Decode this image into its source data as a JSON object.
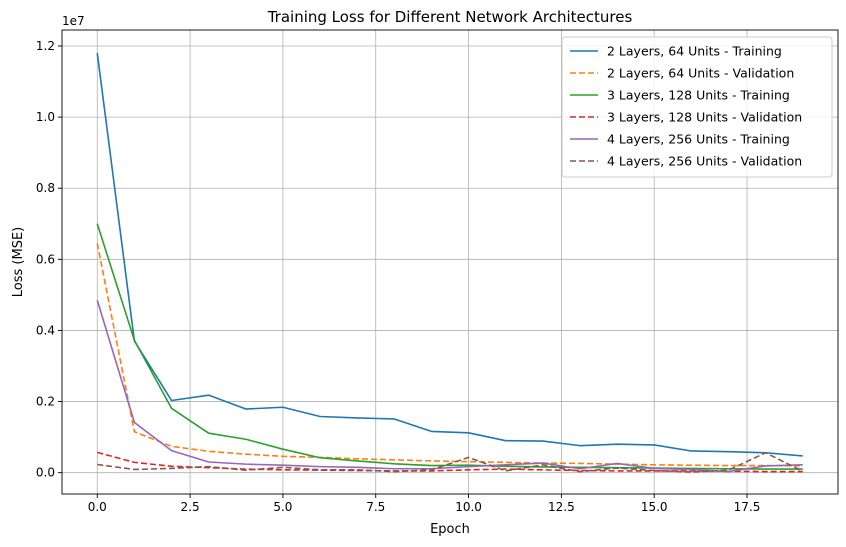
{
  "chart_data": {
    "type": "line",
    "title": "Training Loss for Different Network Architectures",
    "xlabel": "Epoch",
    "ylabel": "Loss (MSE)",
    "y_scale_note": "1e7",
    "xlim": [
      -0.95,
      19.95
    ],
    "ylim": [
      -600000,
      12450000
    ],
    "x_ticks": [
      0,
      2.5,
      5,
      7.5,
      10,
      12.5,
      15,
      17.5
    ],
    "x_tick_labels": [
      "0.0",
      "2.5",
      "5.0",
      "7.5",
      "10.0",
      "12.5",
      "15.0",
      "17.5"
    ],
    "y_ticks": [
      0,
      2000000,
      4000000,
      6000000,
      8000000,
      10000000,
      12000000
    ],
    "y_tick_labels": [
      "0.0",
      "0.2",
      "0.4",
      "0.6",
      "0.8",
      "1.0",
      "1.2"
    ],
    "grid": true,
    "legend_position": "top-right",
    "x": [
      0,
      1,
      2,
      3,
      4,
      5,
      6,
      7,
      8,
      9,
      10,
      11,
      12,
      13,
      14,
      15,
      16,
      17,
      18,
      19
    ],
    "series": [
      {
        "name": "2 Layers, 64 Units - Training",
        "color": "#1f77b4",
        "dash": "solid",
        "values": [
          11800000,
          3700000,
          2030000,
          2180000,
          1790000,
          1840000,
          1580000,
          1540000,
          1510000,
          1160000,
          1120000,
          900000,
          890000,
          760000,
          800000,
          780000,
          610000,
          590000,
          560000,
          470000
        ]
      },
      {
        "name": "2 Layers, 64 Units - Validation",
        "color": "#ff7f0e",
        "dash": "dashed",
        "values": [
          6450000,
          1150000,
          740000,
          600000,
          520000,
          460000,
          430000,
          390000,
          360000,
          330000,
          310000,
          290000,
          270000,
          260000,
          240000,
          220000,
          210000,
          200000,
          200000,
          190000
        ]
      },
      {
        "name": "3 Layers, 128 Units - Training",
        "color": "#2ca02c",
        "dash": "solid",
        "values": [
          7000000,
          3720000,
          1810000,
          1110000,
          940000,
          660000,
          420000,
          330000,
          250000,
          200000,
          210000,
          180000,
          160000,
          150000,
          140000,
          130000,
          120000,
          110000,
          100000,
          100000
        ]
      },
      {
        "name": "3 Layers, 128 Units - Validation",
        "color": "#d62728",
        "dash": "dashed",
        "values": [
          570000,
          290000,
          180000,
          140000,
          100000,
          80000,
          70000,
          60000,
          50000,
          50000,
          80000,
          100000,
          80000,
          60000,
          50000,
          50000,
          50000,
          40000,
          30000,
          30000
        ]
      },
      {
        "name": "4 Layers, 256 Units - Training",
        "color": "#9467bd",
        "dash": "solid",
        "values": [
          4850000,
          1410000,
          620000,
          300000,
          240000,
          210000,
          170000,
          150000,
          110000,
          110000,
          170000,
          220000,
          270000,
          110000,
          260000,
          120000,
          90000,
          30000,
          190000,
          220000
        ]
      },
      {
        "name": "4 Layers, 256 Units - Validation",
        "color": "#8c564b",
        "dash": "dashed",
        "values": [
          230000,
          90000,
          120000,
          170000,
          70000,
          150000,
          80000,
          80000,
          30000,
          80000,
          430000,
          50000,
          220000,
          30000,
          130000,
          60000,
          20000,
          70000,
          560000,
          40000
        ]
      }
    ]
  }
}
